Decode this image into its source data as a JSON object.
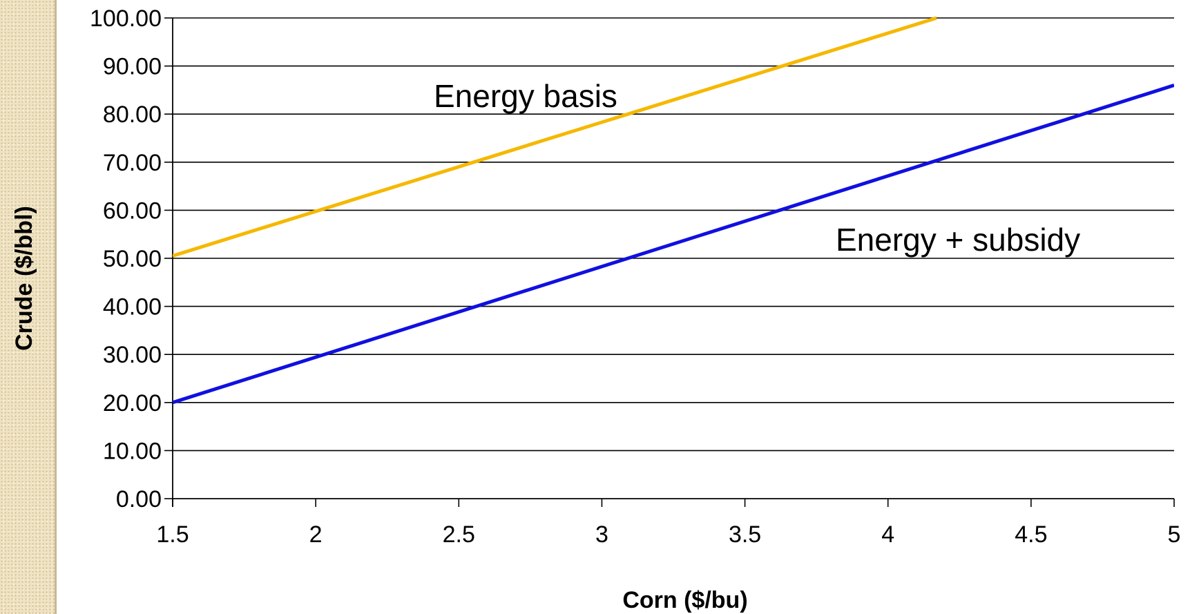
{
  "chart_data": {
    "type": "line",
    "title": "",
    "xlabel": "Corn ($/bu)",
    "ylabel": "Crude ($/bbl)",
    "xlim": [
      1.5,
      5
    ],
    "ylim": [
      0,
      100
    ],
    "x_ticks": [
      "1.5",
      "2",
      "2.5",
      "3",
      "3.5",
      "4",
      "4.5",
      "5"
    ],
    "x_tick_values": [
      1.5,
      2,
      2.5,
      3,
      3.5,
      4,
      4.5,
      5
    ],
    "y_ticks": [
      "0.00",
      "10.00",
      "20.00",
      "30.00",
      "40.00",
      "50.00",
      "60.00",
      "70.00",
      "80.00",
      "90.00",
      "100.00"
    ],
    "y_tick_values": [
      0,
      10,
      20,
      30,
      40,
      50,
      60,
      70,
      80,
      90,
      100
    ],
    "grid": true,
    "series": [
      {
        "name": "Energy basis",
        "color": "#f5b800",
        "x": [
          1.5,
          4.17
        ],
        "y": [
          50.5,
          100
        ]
      },
      {
        "name": "Energy + subsidy",
        "color": "#1010e0",
        "x": [
          1.5,
          5
        ],
        "y": [
          20,
          86
        ]
      }
    ]
  }
}
